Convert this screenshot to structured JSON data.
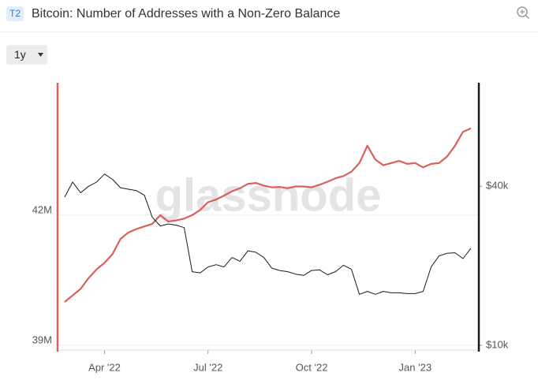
{
  "toolbar": {
    "badge": "T2",
    "range": "1y"
  },
  "chart_data": {
    "type": "line",
    "title": "Bitcoin: Number of Addresses with a Non-Zero Balance",
    "watermark": "glassnode",
    "categories": [
      null,
      null,
      null,
      null,
      null,
      "Apr '22",
      null,
      null,
      null,
      null,
      null,
      null,
      null,
      null,
      null,
      null,
      null,
      null,
      "Jul '22",
      null,
      null,
      null,
      null,
      null,
      null,
      null,
      null,
      null,
      null,
      null,
      null,
      "Oct '22",
      null,
      null,
      null,
      null,
      null,
      null,
      null,
      null,
      null,
      null,
      null,
      null,
      "Jan '23",
      null,
      null,
      null,
      null,
      null,
      null,
      null
    ],
    "series": [
      {
        "color": "#d9605c",
        "axis": "y",
        "values": [
          40000000,
          40150000,
          40300000,
          40550000,
          40750000,
          40900000,
          41100000,
          41450000,
          41600000,
          41680000,
          41740000,
          41800000,
          42000000,
          41850000,
          41880000,
          41920000,
          42000000,
          42120000,
          42300000,
          42360000,
          42450000,
          42550000,
          42620000,
          42720000,
          42740000,
          42680000,
          42640000,
          42650000,
          42620000,
          42660000,
          42660000,
          42640000,
          42700000,
          42770000,
          42850000,
          42900000,
          43000000,
          43200000,
          43600000,
          43280000,
          43150000,
          43200000,
          43250000,
          43180000,
          43200000,
          43100000,
          43180000,
          43200000,
          43350000,
          43600000,
          43920000,
          44000000
        ]
      },
      {
        "color": "#1a1a1a",
        "axis": "y2",
        "values": [
          36400,
          41500,
          37800,
          40000,
          41500,
          44500,
          42500,
          39500,
          39000,
          38500,
          37000,
          30500,
          28300,
          28800,
          28500,
          27900,
          19000,
          18800,
          19800,
          20200,
          19800,
          21500,
          20800,
          22800,
          22500,
          21500,
          19600,
          19200,
          19000,
          18600,
          18400,
          19200,
          19300,
          18500,
          19000,
          20100,
          19400,
          15600,
          16000,
          15600,
          16000,
          15800,
          15800,
          15700,
          15700,
          16000,
          19800,
          21800,
          22300,
          22400,
          21300,
          23300
        ]
      }
    ],
    "ylim": [
      39000000,
      45050000
    ],
    "yticks": [
      {
        "value": 39000000,
        "label": "39M"
      },
      {
        "value": 42000000,
        "label": "42M"
      }
    ],
    "y2lim": [
      10000,
      98600
    ],
    "y2log": true,
    "y2ticks": [
      {
        "value": 10000,
        "label": "$10k"
      },
      {
        "value": 40000,
        "label": "$40k"
      }
    ],
    "grid": true
  }
}
